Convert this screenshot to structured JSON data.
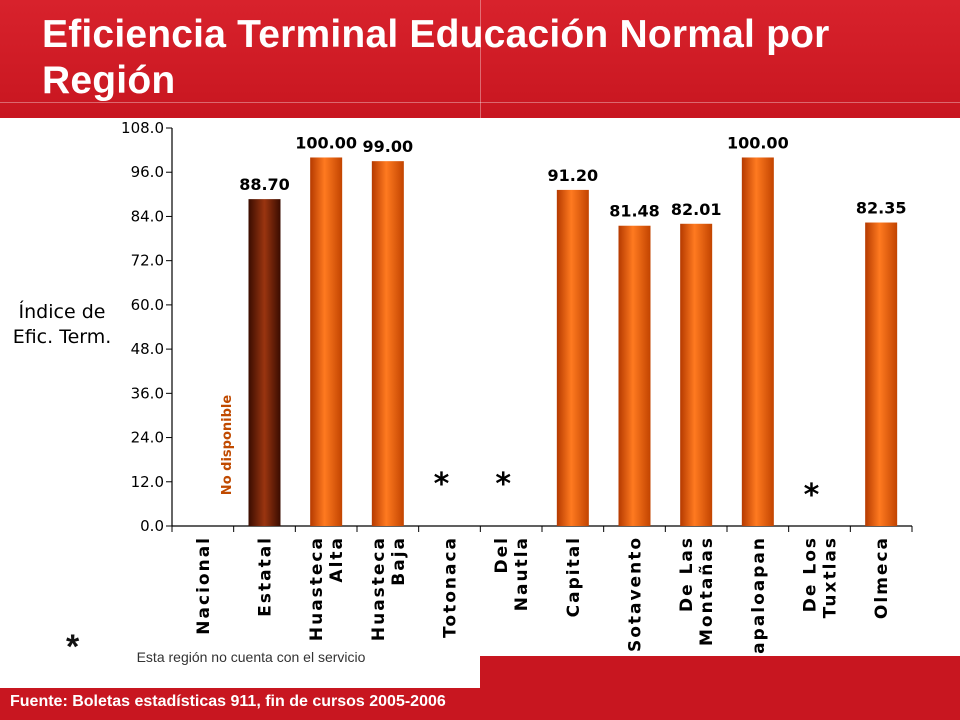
{
  "title": "Eficiencia Terminal Educación Normal por Región",
  "source": "Fuente: Boletas estadísticas 911, fin de cursos 2005-2006",
  "footnote": {
    "marker": "*",
    "text": "Esta región no cuenta con el servicio"
  },
  "colors": {
    "header_red": "#c81620",
    "bar_orange": "#ff6a10",
    "bar_orange_dark": "#b53a00",
    "bar_state": "#8a2a08",
    "bar_state_dark": "#3a0c00",
    "no_data_text": "#c04a00"
  },
  "chart_data": {
    "type": "bar",
    "ylabel": "Índice de Efic. Term.",
    "ylim": [
      0,
      108
    ],
    "yticks": [
      "0.0",
      "12.0",
      "24.0",
      "36.0",
      "48.0",
      "60.0",
      "72.0",
      "84.0",
      "96.0",
      "108.0"
    ],
    "categories": [
      "Nacional",
      "Estatal",
      "Huasteca Alta",
      "Huasteca Baja",
      "Totonaca",
      "Del Nautla",
      "Capital",
      "Sotavento",
      "De Las Montañas",
      "Papaloapan",
      "De Los Tuxtlas",
      "Olmeca"
    ],
    "values": [
      null,
      88.7,
      100.0,
      99.0,
      null,
      null,
      91.2,
      81.48,
      82.01,
      100.0,
      null,
      82.35
    ],
    "value_labels": [
      "",
      "88.70",
      "100.00",
      "99.00",
      "",
      "",
      "91.20",
      "81.48",
      "82.01",
      "100.00",
      "",
      "82.35"
    ],
    "highlight_category": "Estatal",
    "no_data_label": "No disponible",
    "no_service_marker": "*",
    "no_service_categories": [
      "Totonaca",
      "Del Nautla",
      "De Los Tuxtlas"
    ]
  }
}
